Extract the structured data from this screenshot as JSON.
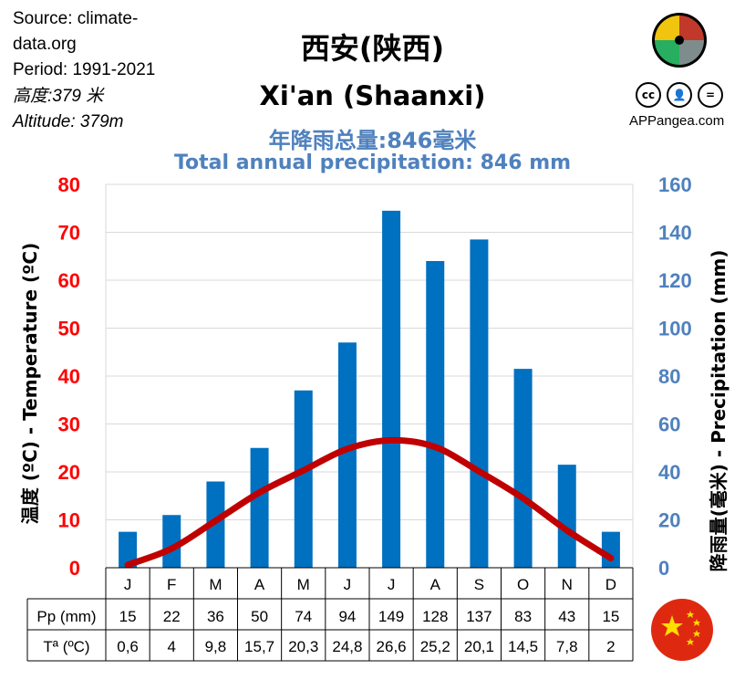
{
  "source_lines": [
    "Source: climate-",
    "data.org",
    "Period: 1991-2021"
  ],
  "altitude_cn": "高度:379 米",
  "altitude_en": "Altitude: 379m",
  "title_cn": "西安(陕西)",
  "title_en": "Xi'an (Shaanxi)",
  "subtitle_cn": "年降雨总量:846毫米",
  "subtitle_en": "Total annual precipitation: 846 mm",
  "brand": "APPangea.com",
  "license_icons": [
    "cc-icon",
    "by-icon",
    "nd-icon"
  ],
  "colors": {
    "temp_axis": "#ff0000",
    "precip_axis": "#4f81bd",
    "bar": "#0070c0",
    "line": "#c00000",
    "grid": "#d9d9d9"
  },
  "chart_data": {
    "type": "bar+line",
    "categories": [
      "J",
      "F",
      "M",
      "A",
      "M",
      "J",
      "J",
      "A",
      "S",
      "O",
      "N",
      "D"
    ],
    "precipitation": {
      "label": "Pp (mm)",
      "values": [
        15,
        22,
        36,
        50,
        74,
        94,
        149,
        128,
        137,
        83,
        43,
        15
      ],
      "axis_range": [
        0,
        160
      ],
      "ticks": [
        0,
        20,
        40,
        60,
        80,
        100,
        120,
        140,
        160
      ]
    },
    "temperature": {
      "label": "Tª (ºC)",
      "values": [
        0.6,
        4,
        9.8,
        15.7,
        20.3,
        24.8,
        26.6,
        25.2,
        20.1,
        14.5,
        7.8,
        2
      ],
      "display": [
        "0,6",
        "4",
        "9,8",
        "15,7",
        "20,3",
        "24,8",
        "26,6",
        "25,2",
        "20,1",
        "14,5",
        "7,8",
        "2"
      ],
      "axis_range": [
        0,
        80
      ],
      "ticks": [
        0,
        10,
        20,
        30,
        40,
        50,
        60,
        70,
        80
      ]
    },
    "ylabel_left": "温度 (ºC) - Temperature (ºC)",
    "ylabel_right": "降雨量(毫米) - Precipitation (mm)",
    "grid": true
  }
}
